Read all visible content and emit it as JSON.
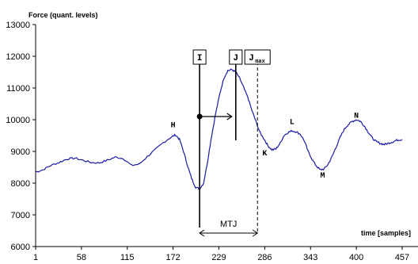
{
  "chart_data": {
    "type": "line",
    "title": "",
    "ylabel": "Force (quant. levels)",
    "xlabel": "time [samples]",
    "ylim": [
      6000,
      13000
    ],
    "xlim": [
      1,
      457
    ],
    "y_ticks": [
      6000,
      7000,
      8000,
      9000,
      10000,
      11000,
      12000,
      13000
    ],
    "x_ticks": [
      1,
      58,
      115,
      172,
      229,
      286,
      343,
      400,
      457
    ],
    "grid": false,
    "series": [
      {
        "x": [
          1,
          10,
          20,
          30,
          40,
          50,
          60,
          70,
          80,
          90,
          100,
          110,
          120,
          130,
          140,
          150,
          160,
          170,
          175,
          180,
          185,
          190,
          195,
          200,
          205,
          210,
          215,
          220,
          225,
          230,
          235,
          240,
          245,
          250,
          255,
          260,
          265,
          270,
          275,
          280,
          285,
          290,
          295,
          300,
          305,
          310,
          315,
          320,
          325,
          330,
          335,
          340,
          345,
          350,
          355,
          360,
          365,
          370,
          375,
          380,
          385,
          390,
          395,
          400,
          405,
          410,
          415,
          420,
          425,
          430,
          435,
          440,
          445,
          450,
          457
        ],
        "y": [
          8350,
          8420,
          8560,
          8650,
          8760,
          8790,
          8720,
          8650,
          8640,
          8720,
          8820,
          8780,
          8560,
          8600,
          8840,
          9060,
          9280,
          9460,
          9520,
          9380,
          9000,
          8550,
          8150,
          7870,
          7820,
          8000,
          8700,
          9500,
          10200,
          10800,
          11300,
          11550,
          11580,
          11500,
          11300,
          11000,
          10700,
          10300,
          9950,
          9600,
          9400,
          9180,
          9050,
          9080,
          9250,
          9500,
          9600,
          9650,
          9620,
          9550,
          9350,
          9000,
          8750,
          8550,
          8420,
          8450,
          8600,
          8850,
          9150,
          9450,
          9700,
          9850,
          9950,
          10000,
          9950,
          9800,
          9600,
          9420,
          9300,
          9250,
          9220,
          9260,
          9300,
          9350,
          9380
        ]
      }
    ],
    "annotations": {
      "point_labels": [
        {
          "text": "H",
          "x": 172,
          "y": 9760
        },
        {
          "text": "K",
          "x": 286,
          "y": 8870
        },
        {
          "text": "L",
          "x": 320,
          "y": 9860
        },
        {
          "text": "M",
          "x": 358,
          "y": 8170
        },
        {
          "text": "N",
          "x": 400,
          "y": 10060
        }
      ],
      "markers": [
        {
          "label": "I",
          "x": 205,
          "line_top": 12000,
          "line_bottom": 6600,
          "style": "solid"
        },
        {
          "label": "J",
          "x": 250,
          "line_top": 12000,
          "line_bottom": 9350,
          "style": "solid"
        },
        {
          "label": "J",
          "label_sub": "max",
          "x": 277,
          "line_top": 12000,
          "line_bottom": 6400,
          "style": "dashed"
        }
      ],
      "arrow": {
        "from_x": 205,
        "to_x": 245,
        "y": 10100
      },
      "span": {
        "label": "MTJ",
        "from_x": 205,
        "to_x": 277,
        "y": 6800
      }
    }
  }
}
